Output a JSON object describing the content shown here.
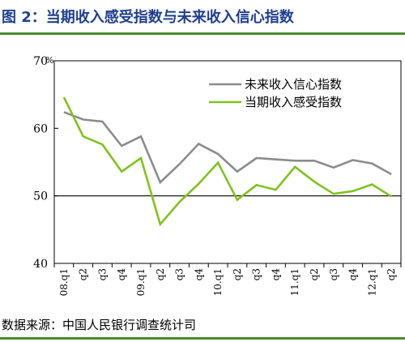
{
  "figure": {
    "title": "图 2：当期收入感受指数与未来收入信心指数",
    "source": "数据来源：中国人民银行调查统计司",
    "rule_color": "#4a8a2a",
    "title_color": "#1f3f8f"
  },
  "chart_data": {
    "type": "line",
    "title": "",
    "xlabel": "",
    "ylabel": "",
    "y_unit": "%",
    "ylim": [
      40,
      70
    ],
    "y_ticks": [
      40,
      50,
      60,
      70
    ],
    "grid": false,
    "reference_line": 50,
    "legend_position": "top-right",
    "categories": [
      "08.q1",
      "q2",
      "q3",
      "q4",
      "09.q1",
      "q2",
      "q3",
      "q4",
      "10.q1",
      "q2",
      "q3",
      "q4",
      "11.q1",
      "q2",
      "q3",
      "q4",
      "12.q1",
      "q2"
    ],
    "series": [
      {
        "name": "未来收入信心指数",
        "color": "#8c8c8c",
        "values": [
          62.4,
          61.3,
          61.0,
          57.4,
          58.8,
          52.0,
          54.7,
          57.7,
          56.2,
          53.6,
          55.6,
          55.4,
          55.2,
          55.2,
          54.2,
          55.3,
          54.8,
          53.2
        ]
      },
      {
        "name": "当期收入感受指数",
        "color": "#7fc31c",
        "values": [
          64.6,
          58.8,
          57.6,
          53.6,
          55.6,
          45.8,
          49.1,
          51.8,
          54.9,
          49.4,
          51.6,
          50.9,
          54.3,
          52.1,
          50.3,
          50.7,
          51.7,
          49.9
        ]
      }
    ]
  }
}
